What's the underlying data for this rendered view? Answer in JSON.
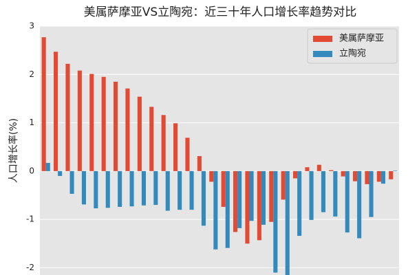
{
  "chart_data": {
    "type": "bar",
    "title": "美属萨摩亚VS立陶宛：近三十年人口增长率趋势对比",
    "y_label": "人口增长率(%)",
    "categories": [
      null,
      null,
      null,
      null,
      null,
      null,
      null,
      null,
      null,
      null,
      null,
      null,
      null,
      null,
      null,
      null,
      null,
      null,
      null,
      null,
      null,
      null,
      null,
      null,
      null,
      null,
      null,
      null,
      null,
      null
    ],
    "series": [
      {
        "name": "美属萨摩亚",
        "color": "#E24A33",
        "values": [
          2.77,
          2.47,
          2.22,
          2.08,
          2.01,
          1.95,
          1.85,
          1.71,
          1.54,
          1.33,
          1.16,
          0.99,
          0.69,
          0.31,
          -0.22,
          -0.74,
          -1.26,
          -1.5,
          -1.43,
          -1.05,
          -0.59,
          -0.15,
          0.08,
          0.13,
          0.02,
          -0.11,
          -0.21,
          -0.27,
          -0.22,
          -0.17
        ]
      },
      {
        "name": "立陶宛",
        "color": "#348ABD",
        "values": [
          0.17,
          -0.1,
          -0.47,
          -0.69,
          -0.77,
          -0.76,
          -0.74,
          -0.73,
          -0.71,
          -0.7,
          -0.82,
          -0.8,
          -0.8,
          -1.13,
          -1.62,
          -1.59,
          -1.18,
          -1.03,
          -1.11,
          -2.1,
          -2.15,
          -1.34,
          -1.01,
          -0.85,
          -0.94,
          -1.27,
          -1.39,
          -0.95,
          -0.26,
          0.01
        ]
      }
    ],
    "ylim": [
      -2.15,
      3
    ],
    "yticks": [
      -2,
      -1,
      0,
      1,
      2,
      3
    ],
    "grid": true,
    "legend": "upper right"
  }
}
